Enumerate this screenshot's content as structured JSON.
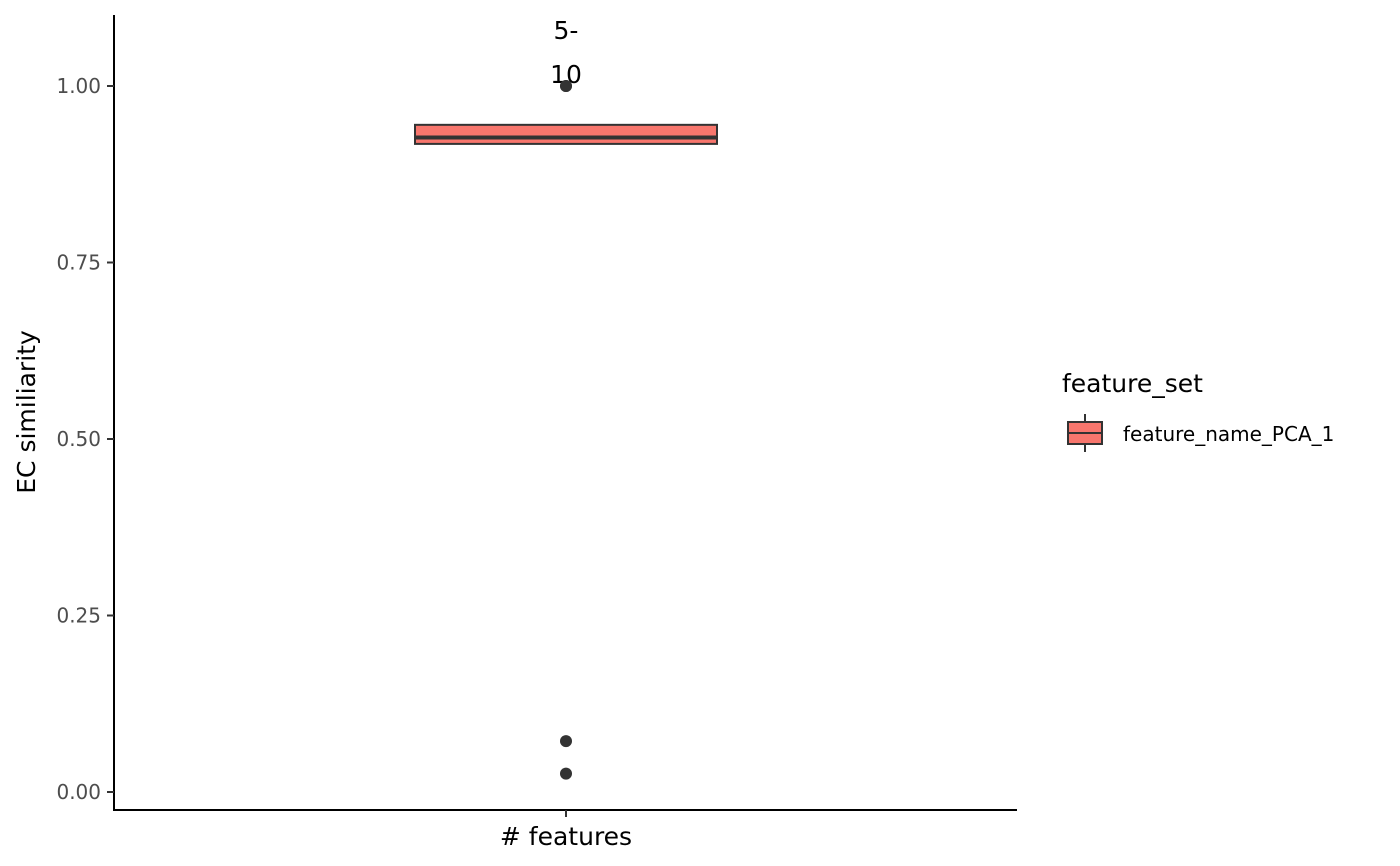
{
  "chart_data": {
    "type": "box",
    "xlabel": "# features",
    "ylabel": "EC similiarity",
    "ylim": [
      0,
      1.1
    ],
    "yticks": [
      0.0,
      0.25,
      0.5,
      0.75,
      1.0
    ],
    "ytick_labels": [
      "0.00",
      "0.25",
      "0.50",
      "0.75",
      "1.00"
    ],
    "grid": false,
    "legend_position": "right",
    "panel_label_lines": [
      "5-",
      "10"
    ],
    "legend": {
      "title": "feature_set",
      "entries": [
        "feature_name_PCA_1"
      ]
    },
    "series": [
      {
        "name": "feature_name_PCA_1",
        "color": "#F8766D",
        "q1": 0.918,
        "median": 0.927,
        "q3": 0.945,
        "whisker_low": 0.918,
        "whisker_high": 0.945,
        "outliers": [
          1.0,
          1.0,
          0.072,
          0.026
        ]
      }
    ]
  }
}
